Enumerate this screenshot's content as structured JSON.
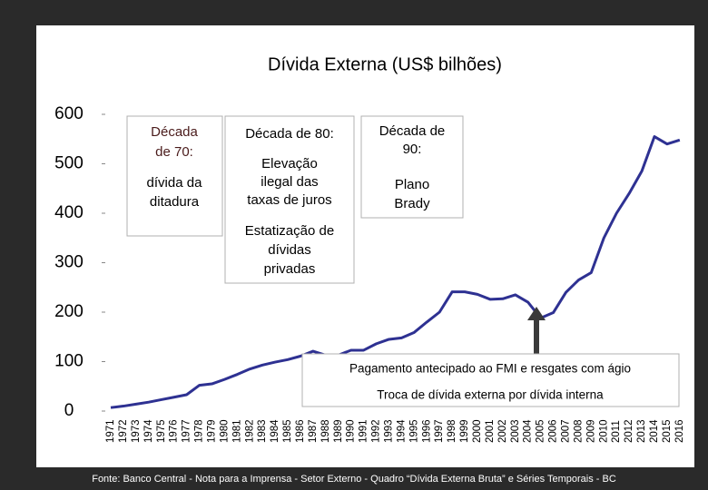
{
  "chart_data": {
    "type": "line",
    "title": "Dívida Externa (US$ bilhões)",
    "categories": [
      "1971",
      "1972",
      "1973",
      "1974",
      "1975",
      "1976",
      "1977",
      "1978",
      "1979",
      "1980",
      "1981",
      "1982",
      "1983",
      "1984",
      "1985",
      "1986",
      "1987",
      "1988",
      "1989",
      "1990",
      "1991",
      "1992",
      "1993",
      "1994",
      "1995",
      "1996",
      "1997",
      "1998",
      "1999",
      "2000",
      "2001",
      "2002",
      "2003",
      "2004",
      "2005",
      "2006",
      "2007",
      "2008",
      "2009",
      "2010",
      "2011",
      "2012",
      "2013",
      "2014",
      "2015",
      "2016"
    ],
    "series": [
      {
        "color": "#2e3192",
        "values": [
          7,
          10,
          14,
          18,
          23,
          28,
          33,
          52,
          55,
          64,
          74,
          85,
          93,
          99,
          104,
          111,
          121,
          113,
          113,
          123,
          123,
          136,
          145,
          148,
          159,
          180,
          200,
          241,
          241,
          236,
          226,
          227,
          235,
          220,
          188,
          199,
          240,
          265,
          280,
          350,
          400,
          440,
          485,
          555,
          540,
          548
        ]
      }
    ],
    "ylim": [
      0,
      600
    ],
    "yticks": [
      0,
      100,
      200,
      300,
      400,
      500,
      600
    ],
    "annotations": [
      {
        "lines": [
          "Década",
          "de 70:",
          "dívida da",
          "ditadura"
        ]
      },
      {
        "lines": [
          "Década de 80:",
          "Elevação",
          "ilegal das",
          "taxas de juros",
          "Estatização de",
          "dívidas",
          "privadas"
        ]
      },
      {
        "lines": [
          "Década de",
          "90:",
          "Plano",
          "Brady"
        ]
      },
      {
        "lines": [
          "Pagamento antecipado ao FMI e resgates com ágio",
          "Troca de dívida externa por dívida interna"
        ]
      }
    ],
    "source": "Fonte: Banco Central - Nota para a Imprensa - Setor Externo - Quadro “Dívida Externa Bruta” e Séries Temporais - BC"
  }
}
